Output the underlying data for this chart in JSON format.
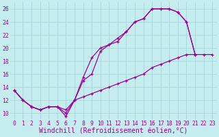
{
  "xlabel": "Windchill (Refroidissement éolien,°C)",
  "background_color": "#c5edf0",
  "grid_color": "#aad8dc",
  "line_color": "#990099",
  "xlim": [
    -0.5,
    23.5
  ],
  "ylim": [
    9.0,
    27.0
  ],
  "xticks": [
    0,
    1,
    2,
    3,
    4,
    5,
    6,
    7,
    8,
    9,
    10,
    11,
    12,
    13,
    14,
    15,
    16,
    17,
    18,
    19,
    20,
    21,
    22,
    23
  ],
  "yticks": [
    10,
    12,
    14,
    16,
    18,
    20,
    22,
    24,
    26
  ],
  "line1_x": [
    0,
    1,
    2,
    3,
    4,
    5,
    6,
    7,
    8,
    9,
    10,
    11,
    12,
    13,
    14,
    15,
    16,
    17,
    18,
    19,
    20,
    21
  ],
  "line1_y": [
    13.5,
    12.0,
    11.0,
    10.5,
    11.0,
    11.0,
    9.5,
    12.0,
    15.5,
    18.5,
    20.0,
    20.5,
    21.5,
    22.5,
    24.0,
    24.5,
    26.0,
    26.0,
    26.0,
    25.5,
    24.0,
    19.0
  ],
  "line2_x": [
    0,
    1,
    2,
    3,
    4,
    5,
    6,
    7,
    8,
    9,
    10,
    11,
    12,
    13,
    14,
    15,
    16,
    17,
    18,
    19,
    20,
    21
  ],
  "line2_y": [
    13.5,
    12.0,
    11.0,
    10.5,
    11.0,
    11.0,
    10.0,
    12.0,
    15.0,
    16.0,
    19.5,
    20.5,
    21.0,
    22.5,
    24.0,
    24.5,
    26.0,
    26.0,
    26.0,
    25.5,
    24.0,
    19.0
  ],
  "line3_x": [
    0,
    1,
    2,
    3,
    4,
    5,
    6,
    7,
    8,
    9,
    10,
    11,
    12,
    13,
    14,
    15,
    16,
    17,
    18,
    19,
    20,
    21,
    22,
    23
  ],
  "line3_y": [
    13.5,
    12.0,
    11.0,
    10.5,
    11.0,
    11.0,
    10.5,
    12.0,
    12.5,
    13.0,
    13.5,
    14.0,
    14.5,
    15.0,
    15.5,
    16.0,
    17.0,
    17.5,
    18.0,
    18.5,
    19.0,
    19.0,
    19.0,
    19.0
  ],
  "font_family": "monospace",
  "tick_fontsize": 5.8,
  "xlabel_fontsize": 7.0
}
